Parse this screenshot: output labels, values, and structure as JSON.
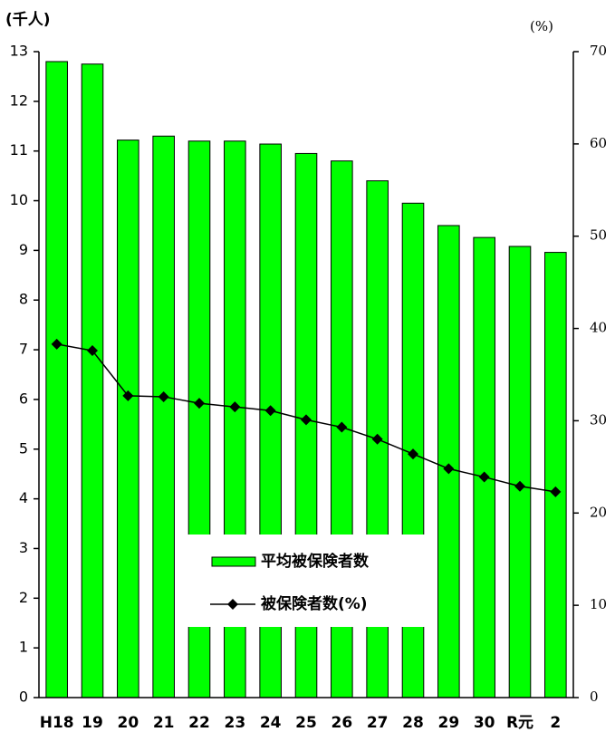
{
  "chart_data": {
    "type": "bar",
    "y_label": "(千人)",
    "y2_label": "(%)",
    "categories": [
      "H18",
      "19",
      "20",
      "21",
      "22",
      "23",
      "24",
      "25",
      "26",
      "27",
      "28",
      "29",
      "30",
      "R元",
      "2"
    ],
    "series": [
      {
        "name": "平均被保険者数",
        "color": "#00ff00",
        "values": [
          12.8,
          12.75,
          11.22,
          11.3,
          11.2,
          11.2,
          11.14,
          10.95,
          10.8,
          10.4,
          9.95,
          9.5,
          9.26,
          9.08,
          8.96
        ]
      },
      {
        "name": "被保険者数(%)",
        "color": "#000000",
        "axis": "y2",
        "values": [
          38.3,
          37.6,
          32.7,
          32.6,
          31.9,
          31.5,
          31.1,
          30.1,
          29.3,
          28.0,
          26.4,
          24.8,
          23.9,
          22.9,
          22.3
        ]
      }
    ],
    "ylim": [
      0,
      13
    ],
    "yticks": [
      0,
      1,
      2,
      3,
      4,
      5,
      6,
      7,
      8,
      9,
      10,
      11,
      12,
      13
    ],
    "y2lim": [
      0,
      70
    ],
    "y2ticks": [
      0,
      10,
      20,
      30,
      40,
      50,
      60,
      70
    ],
    "legend": "lower center"
  }
}
